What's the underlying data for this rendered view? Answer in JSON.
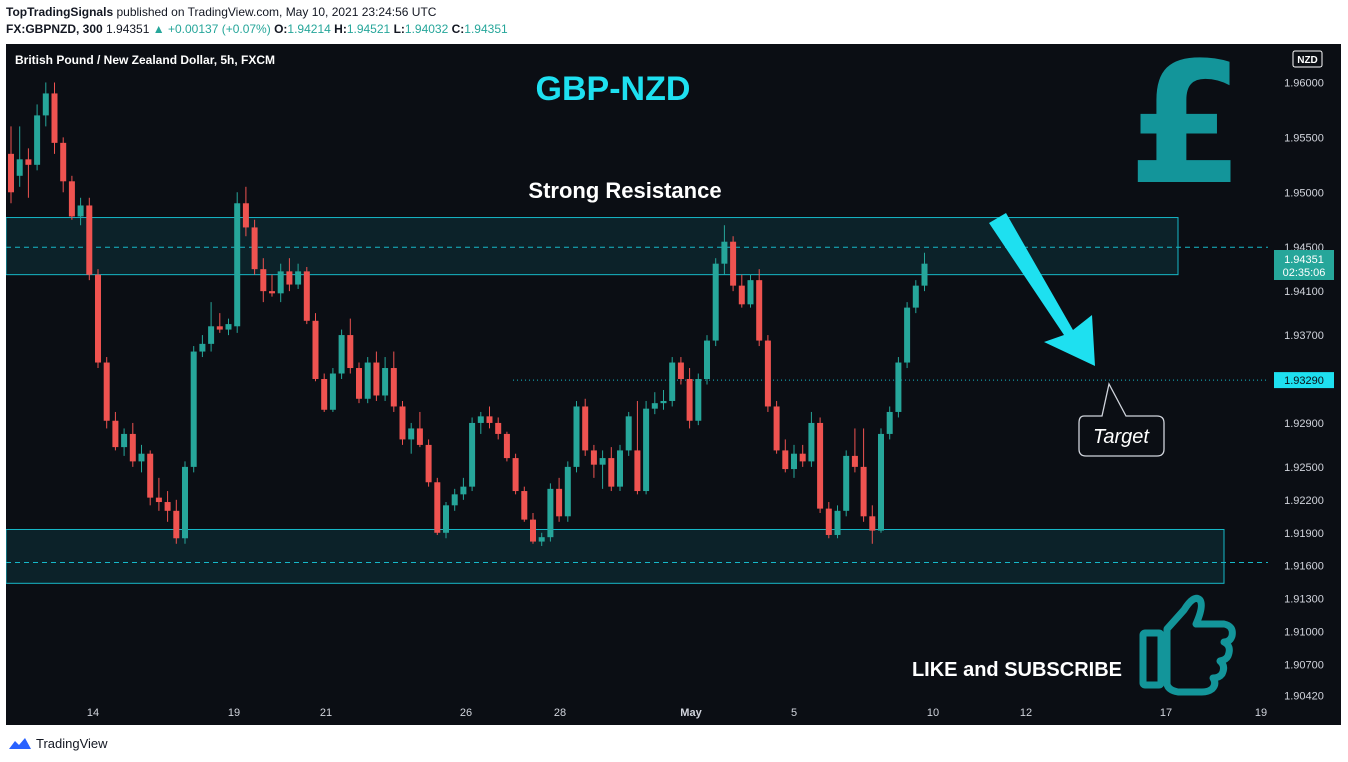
{
  "header": {
    "publisher": "TopTradingSignals",
    "published_text": "published on TradingView.com, May 10, 2021 23:24:56 UTC",
    "symbol": "FX:GBPNZD, 300",
    "last_price": "1.94351",
    "change": "▲ +0.00137 (+0.07%)",
    "o_label": "O:",
    "o_value": "1.94214",
    "h_label": "H:",
    "h_value": "1.94521",
    "l_label": "L:",
    "l_value": "1.94032",
    "c_label": "C:",
    "c_value": "1.94351"
  },
  "chart_data": {
    "type": "candlestick",
    "instrument_title": "British Pound / New Zealand Dollar, 5h, FXCM",
    "title": "GBP-NZD",
    "currency_badge": "NZD",
    "colors": {
      "up": "#26a69a",
      "down": "#ef5350",
      "accent": "#1ee0f0",
      "background": "#0b0e14",
      "zone": "#16b8c8"
    },
    "ylim": [
      1.9015,
      1.9635
    ],
    "y_ticks": [
      "1.96000",
      "1.95500",
      "1.95000",
      "1.94500",
      "1.94100",
      "1.93700",
      "1.93290",
      "1.92900",
      "1.92500",
      "1.92200",
      "1.91900",
      "1.91600",
      "1.91300",
      "1.91000",
      "1.90700",
      "1.90420"
    ],
    "x_ticks": [
      "14",
      "19",
      "21",
      "26",
      "28",
      "May",
      "5",
      "10",
      "12",
      "17",
      "19"
    ],
    "current_price_label": "1.94351",
    "countdown_label": "02:35:06",
    "target_price_label": "1.93290",
    "resistance_zone": [
      1.9425,
      1.9477
    ],
    "support_zone": [
      1.9144,
      1.9193
    ],
    "resistance_mid": 1.945,
    "support_mid": 1.9163,
    "target_level": 1.9329,
    "annotations": {
      "resistance": "Strong Resistance",
      "target": "Target",
      "cta": "LIKE and SUBSCRIBE"
    },
    "candles": [
      [
        1.9535,
        1.956,
        1.949,
        1.95
      ],
      [
        1.9515,
        1.956,
        1.9505,
        1.953
      ],
      [
        1.953,
        1.954,
        1.9495,
        1.9525
      ],
      [
        1.9525,
        1.958,
        1.952,
        1.957
      ],
      [
        1.957,
        1.96,
        1.956,
        1.959
      ],
      [
        1.959,
        1.96,
        1.9535,
        1.9545
      ],
      [
        1.9545,
        1.955,
        1.95,
        1.951
      ],
      [
        1.951,
        1.9515,
        1.9475,
        1.9478
      ],
      [
        1.9478,
        1.9495,
        1.947,
        1.9488
      ],
      [
        1.9488,
        1.9495,
        1.942,
        1.9425
      ],
      [
        1.9425,
        1.943,
        1.934,
        1.9345
      ],
      [
        1.9345,
        1.935,
        1.9285,
        1.9292
      ],
      [
        1.9292,
        1.93,
        1.9265,
        1.9268
      ],
      [
        1.9268,
        1.9285,
        1.926,
        1.928
      ],
      [
        1.928,
        1.929,
        1.925,
        1.9255
      ],
      [
        1.9255,
        1.927,
        1.9245,
        1.9262
      ],
      [
        1.9262,
        1.9265,
        1.9215,
        1.9222
      ],
      [
        1.9222,
        1.924,
        1.921,
        1.9218
      ],
      [
        1.9218,
        1.9228,
        1.92,
        1.921
      ],
      [
        1.921,
        1.922,
        1.918,
        1.9185
      ],
      [
        1.9185,
        1.9255,
        1.918,
        1.925
      ],
      [
        1.925,
        1.936,
        1.9245,
        1.9355
      ],
      [
        1.9355,
        1.937,
        1.935,
        1.9362
      ],
      [
        1.9362,
        1.94,
        1.9355,
        1.9378
      ],
      [
        1.9378,
        1.939,
        1.9372,
        1.9375
      ],
      [
        1.9375,
        1.9385,
        1.937,
        1.938
      ],
      [
        1.9378,
        1.95,
        1.9372,
        1.949
      ],
      [
        1.949,
        1.9505,
        1.946,
        1.9468
      ],
      [
        1.9468,
        1.9475,
        1.9425,
        1.943
      ],
      [
        1.943,
        1.944,
        1.94,
        1.941
      ],
      [
        1.941,
        1.9425,
        1.9405,
        1.9408
      ],
      [
        1.9408,
        1.9435,
        1.94,
        1.9428
      ],
      [
        1.9428,
        1.944,
        1.941,
        1.9416
      ],
      [
        1.9416,
        1.9435,
        1.9412,
        1.9428
      ],
      [
        1.9428,
        1.9432,
        1.938,
        1.9383
      ],
      [
        1.9383,
        1.939,
        1.9328,
        1.933
      ],
      [
        1.933,
        1.9335,
        1.93,
        1.9302
      ],
      [
        1.9302,
        1.934,
        1.93,
        1.9335
      ],
      [
        1.9335,
        1.9375,
        1.933,
        1.937
      ],
      [
        1.937,
        1.9385,
        1.9335,
        1.934
      ],
      [
        1.934,
        1.9345,
        1.9308,
        1.9312
      ],
      [
        1.9312,
        1.935,
        1.9308,
        1.9345
      ],
      [
        1.9345,
        1.9355,
        1.931,
        1.9315
      ],
      [
        1.9315,
        1.935,
        1.931,
        1.934
      ],
      [
        1.934,
        1.9355,
        1.93,
        1.9305
      ],
      [
        1.9305,
        1.931,
        1.927,
        1.9275
      ],
      [
        1.9275,
        1.929,
        1.9262,
        1.9285
      ],
      [
        1.9285,
        1.93,
        1.9268,
        1.927
      ],
      [
        1.927,
        1.9275,
        1.9232,
        1.9236
      ],
      [
        1.9236,
        1.924,
        1.9188,
        1.919
      ],
      [
        1.919,
        1.9218,
        1.9185,
        1.9215
      ],
      [
        1.9215,
        1.923,
        1.921,
        1.9225
      ],
      [
        1.9225,
        1.924,
        1.922,
        1.9232
      ],
      [
        1.9232,
        1.9295,
        1.9228,
        1.929
      ],
      [
        1.929,
        1.93,
        1.928,
        1.9296
      ],
      [
        1.9296,
        1.9305,
        1.9285,
        1.929
      ],
      [
        1.929,
        1.9295,
        1.9275,
        1.928
      ],
      [
        1.928,
        1.9282,
        1.9255,
        1.9258
      ],
      [
        1.9258,
        1.9262,
        1.9225,
        1.9228
      ],
      [
        1.9228,
        1.9232,
        1.92,
        1.9202
      ],
      [
        1.9202,
        1.9208,
        1.918,
        1.9182
      ],
      [
        1.9182,
        1.919,
        1.9178,
        1.9186
      ],
      [
        1.9186,
        1.9235,
        1.9182,
        1.923
      ],
      [
        1.923,
        1.924,
        1.92,
        1.9205
      ],
      [
        1.9205,
        1.9255,
        1.92,
        1.925
      ],
      [
        1.925,
        1.931,
        1.9245,
        1.9305
      ],
      [
        1.9305,
        1.9312,
        1.926,
        1.9265
      ],
      [
        1.9265,
        1.927,
        1.924,
        1.9252
      ],
      [
        1.9252,
        1.9265,
        1.923,
        1.9258
      ],
      [
        1.9258,
        1.9268,
        1.9228,
        1.9232
      ],
      [
        1.9232,
        1.927,
        1.9228,
        1.9265
      ],
      [
        1.9265,
        1.93,
        1.926,
        1.9296
      ],
      [
        1.9265,
        1.931,
        1.9225,
        1.9228
      ],
      [
        1.9228,
        1.931,
        1.9225,
        1.9303
      ],
      [
        1.9303,
        1.9318,
        1.9298,
        1.9308
      ],
      [
        1.9308,
        1.932,
        1.9302,
        1.931
      ],
      [
        1.931,
        1.935,
        1.9305,
        1.9345
      ],
      [
        1.9345,
        1.935,
        1.9325,
        1.933
      ],
      [
        1.933,
        1.934,
        1.9285,
        1.9292
      ],
      [
        1.9292,
        1.9335,
        1.9288,
        1.933
      ],
      [
        1.933,
        1.937,
        1.9325,
        1.9365
      ],
      [
        1.9365,
        1.944,
        1.936,
        1.9435
      ],
      [
        1.9435,
        1.947,
        1.9425,
        1.9455
      ],
      [
        1.9455,
        1.946,
        1.941,
        1.9415
      ],
      [
        1.9415,
        1.9425,
        1.9395,
        1.9398
      ],
      [
        1.9398,
        1.9425,
        1.9395,
        1.942
      ],
      [
        1.942,
        1.943,
        1.936,
        1.9365
      ],
      [
        1.9365,
        1.937,
        1.93,
        1.9305
      ],
      [
        1.9305,
        1.931,
        1.9262,
        1.9265
      ],
      [
        1.9265,
        1.9275,
        1.9245,
        1.9248
      ],
      [
        1.9248,
        1.927,
        1.924,
        1.9262
      ],
      [
        1.9262,
        1.927,
        1.925,
        1.9255
      ],
      [
        1.9255,
        1.93,
        1.925,
        1.929
      ],
      [
        1.929,
        1.9295,
        1.9208,
        1.9212
      ],
      [
        1.9212,
        1.9218,
        1.9185,
        1.9188
      ],
      [
        1.9188,
        1.9215,
        1.9185,
        1.921
      ],
      [
        1.921,
        1.9265,
        1.9205,
        1.926
      ],
      [
        1.926,
        1.9285,
        1.9245,
        1.925
      ],
      [
        1.925,
        1.9285,
        1.92,
        1.9205
      ],
      [
        1.9205,
        1.9215,
        1.918,
        1.9192
      ],
      [
        1.9192,
        1.9285,
        1.919,
        1.928
      ],
      [
        1.928,
        1.9305,
        1.9275,
        1.93
      ],
      [
        1.93,
        1.935,
        1.9295,
        1.9345
      ],
      [
        1.9345,
        1.94,
        1.934,
        1.9395
      ],
      [
        1.9395,
        1.942,
        1.939,
        1.9415
      ],
      [
        1.9415,
        1.9445,
        1.941,
        1.9435
      ]
    ]
  },
  "footer": {
    "brand": "TradingView"
  }
}
